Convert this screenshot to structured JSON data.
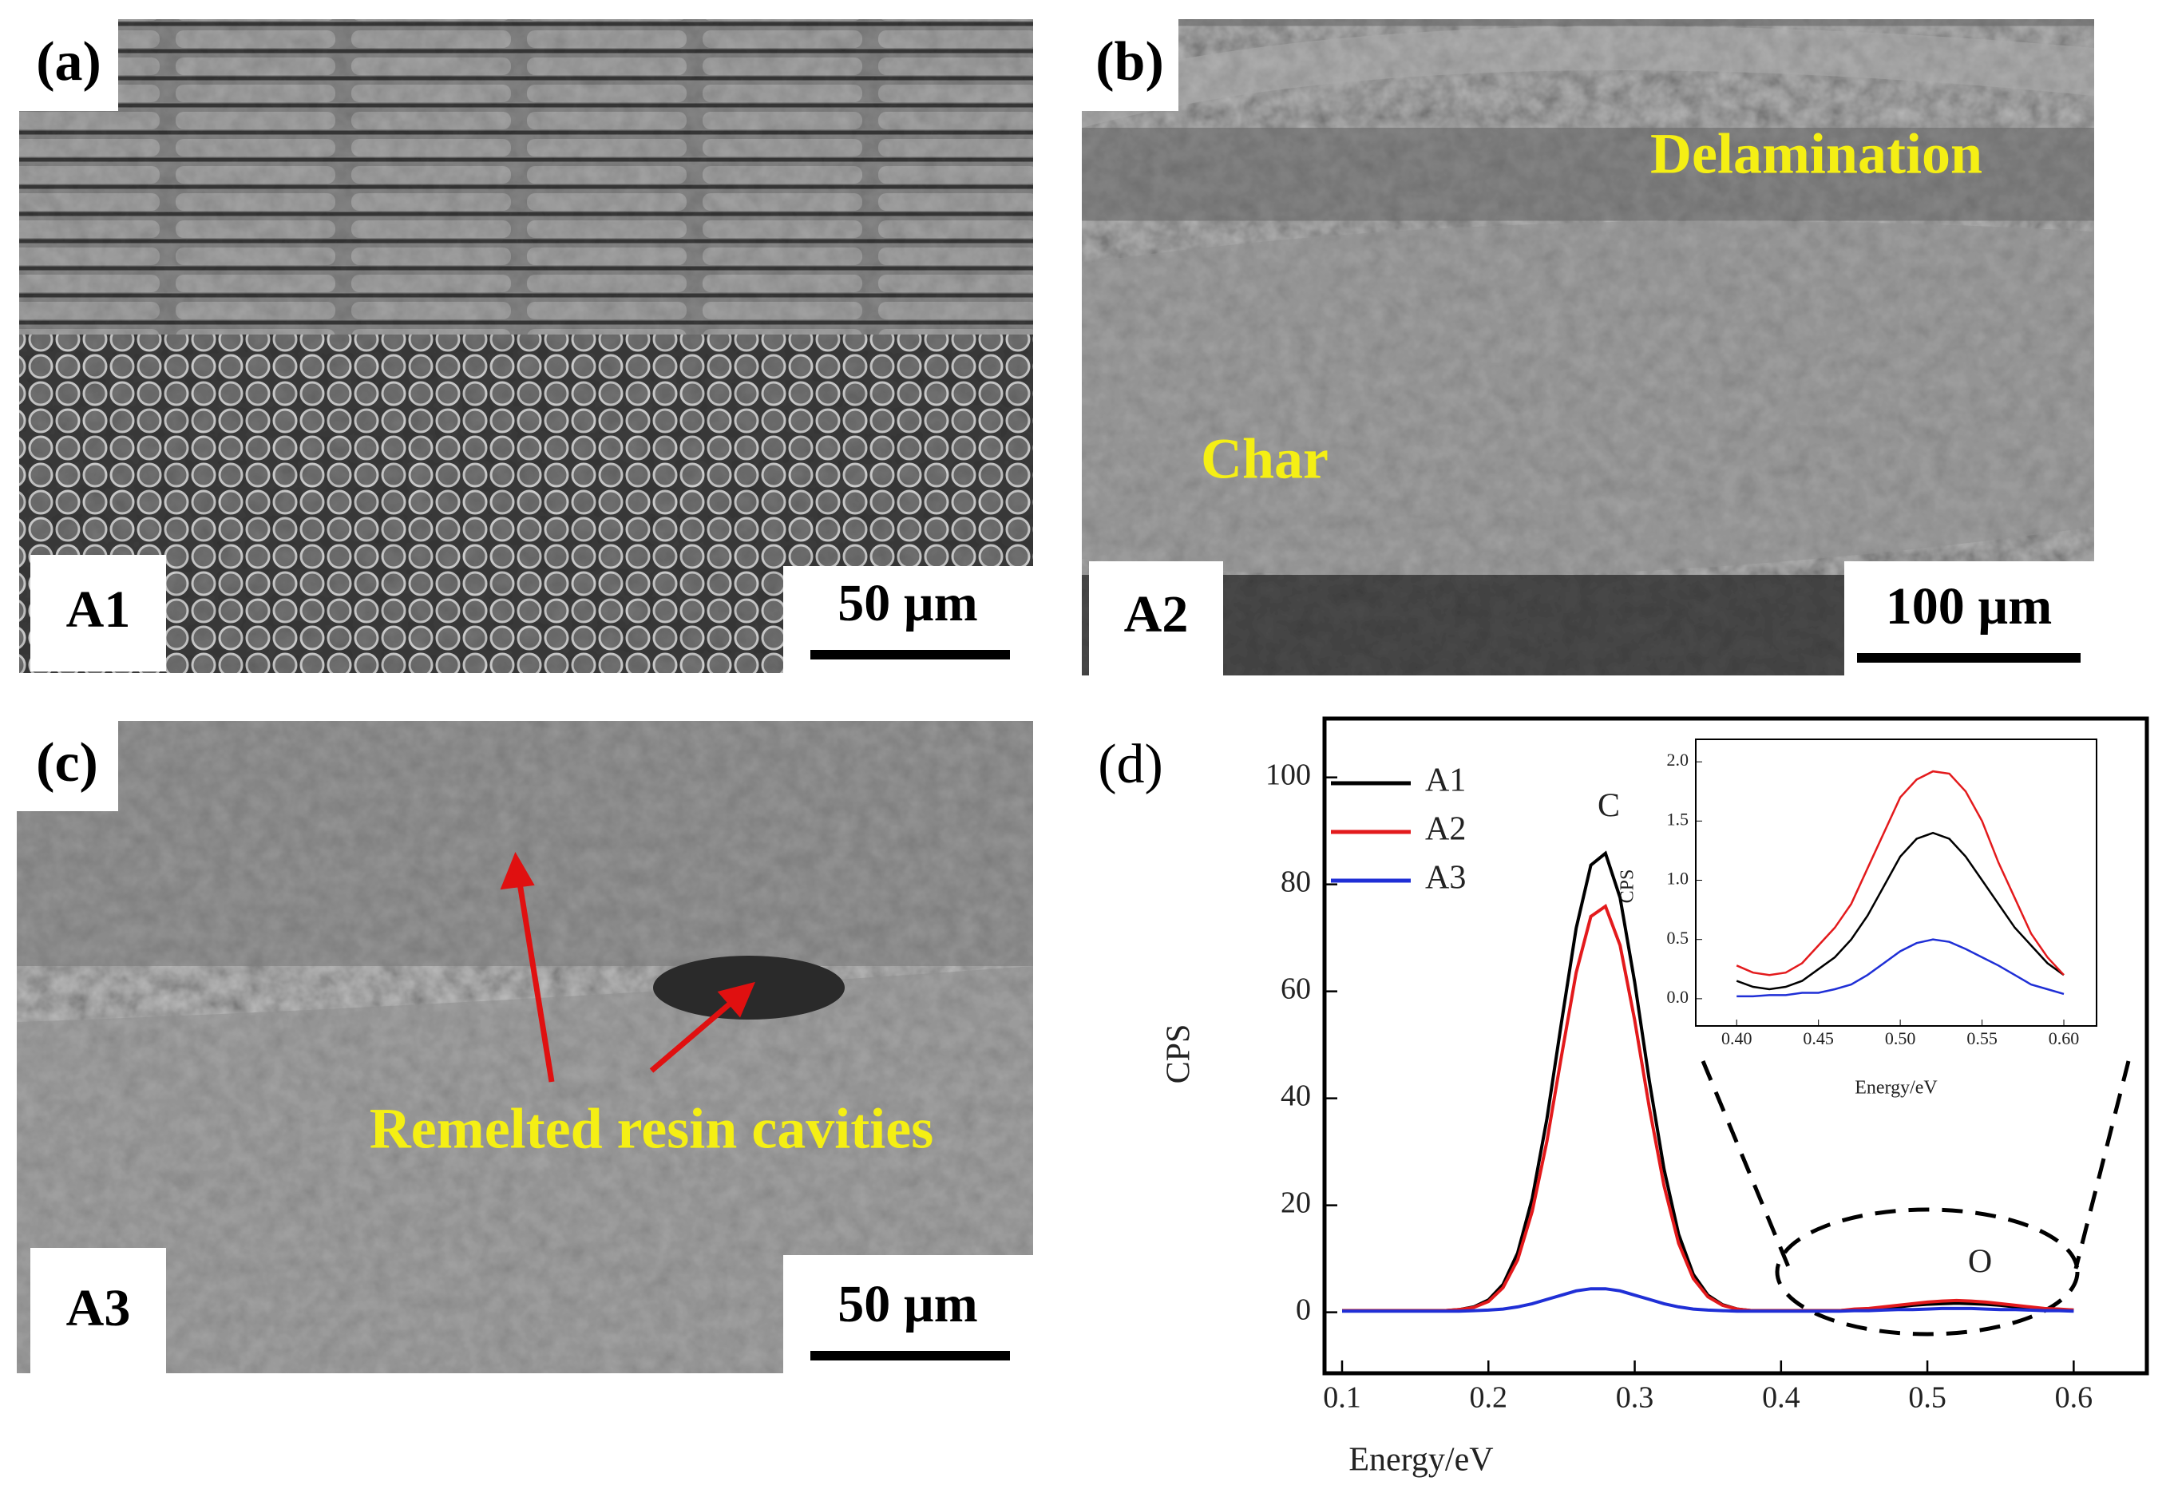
{
  "panels": [
    {
      "label": "(a)",
      "sample": "A1",
      "scale_bar": "50 µm"
    },
    {
      "label": "(b)",
      "sample": "A2",
      "scale_bar": "100 µm",
      "annotations": [
        "Delamination",
        "Char"
      ]
    },
    {
      "label": "(c)",
      "sample": "A3",
      "scale_bar": "50 µm",
      "annotations": [
        "Remelted resin cavities"
      ]
    }
  ],
  "chart_data": [
    {
      "type": "line",
      "panel_label": "(d)",
      "x_label": "Energy/eV",
      "y_label": "CPS",
      "annotations": [
        "C",
        "O"
      ],
      "legend": "upper left",
      "x": [
        0.1,
        0.11,
        0.12,
        0.13,
        0.14,
        0.15,
        0.16,
        0.17,
        0.18,
        0.19,
        0.2,
        0.21,
        0.22,
        0.23,
        0.24,
        0.25,
        0.26,
        0.27,
        0.28,
        0.29,
        0.3,
        0.31,
        0.32,
        0.33,
        0.34,
        0.35,
        0.36,
        0.37,
        0.38,
        0.39,
        0.4,
        0.41,
        0.42,
        0.43,
        0.44,
        0.45,
        0.46,
        0.47,
        0.48,
        0.49,
        0.5,
        0.51,
        0.52,
        0.53,
        0.54,
        0.55,
        0.56,
        0.57,
        0.58,
        0.59,
        0.6
      ],
      "series": [
        {
          "name": "A1",
          "color": "#000000",
          "values": [
            0.3,
            0.3,
            0.3,
            0.3,
            0.3,
            0.3,
            0.3,
            0.3,
            0.5,
            1.0,
            2.3,
            5.2,
            11.1,
            21.3,
            36.2,
            54.3,
            71.8,
            83.6,
            85.8,
            77.5,
            61.7,
            43.2,
            26.8,
            14.6,
            7.1,
            3.2,
            1.4,
            0.6,
            0.3,
            0.3,
            0.3,
            0.3,
            0.3,
            0.3,
            0.3,
            0.5,
            0.6,
            0.8,
            1.0,
            1.3,
            1.5,
            1.6,
            1.7,
            1.6,
            1.5,
            1.3,
            1.0,
            0.8,
            0.6,
            0.5,
            0.4
          ]
        },
        {
          "name": "A2",
          "color": "#e31a1c",
          "values": [
            0.3,
            0.3,
            0.3,
            0.3,
            0.3,
            0.3,
            0.3,
            0.3,
            0.5,
            0.9,
            2.0,
            4.6,
            9.8,
            18.9,
            32.0,
            48.0,
            63.5,
            74.0,
            75.9,
            68.6,
            54.6,
            38.2,
            23.7,
            12.9,
            6.3,
            2.9,
            1.3,
            0.6,
            0.3,
            0.3,
            0.3,
            0.3,
            0.3,
            0.3,
            0.3,
            0.6,
            0.7,
            1.0,
            1.3,
            1.6,
            1.9,
            2.1,
            2.2,
            2.1,
            1.9,
            1.6,
            1.3,
            1.0,
            0.7,
            0.6,
            0.4
          ]
        },
        {
          "name": "A3",
          "color": "#1f2fd6",
          "values": [
            0.2,
            0.2,
            0.2,
            0.2,
            0.2,
            0.2,
            0.2,
            0.2,
            0.2,
            0.3,
            0.4,
            0.6,
            1.0,
            1.6,
            2.4,
            3.2,
            4.0,
            4.4,
            4.4,
            4.0,
            3.2,
            2.4,
            1.6,
            1.0,
            0.6,
            0.4,
            0.3,
            0.2,
            0.2,
            0.2,
            0.2,
            0.2,
            0.2,
            0.2,
            0.2,
            0.3,
            0.3,
            0.4,
            0.5,
            0.5,
            0.6,
            0.7,
            0.7,
            0.7,
            0.6,
            0.5,
            0.5,
            0.4,
            0.3,
            0.3,
            0.2
          ]
        }
      ],
      "xlim": [
        0.088,
        0.65
      ],
      "ylim": [
        -11.4,
        111
      ],
      "xticks": [
        0.1,
        0.2,
        0.3,
        0.4,
        0.5,
        0.6
      ],
      "yticks": [
        0,
        20,
        40,
        60,
        80,
        100
      ]
    },
    {
      "type": "line",
      "x_label": "Energy/eV",
      "y_label": "CPS",
      "x": [
        0.4,
        0.41,
        0.42,
        0.43,
        0.44,
        0.45,
        0.46,
        0.47,
        0.48,
        0.49,
        0.5,
        0.51,
        0.52,
        0.53,
        0.54,
        0.55,
        0.56,
        0.57,
        0.58,
        0.59,
        0.6
      ],
      "series": [
        {
          "color": "#000000",
          "values": [
            0.15,
            0.1,
            0.08,
            0.1,
            0.15,
            0.25,
            0.35,
            0.5,
            0.7,
            0.95,
            1.2,
            1.35,
            1.4,
            1.35,
            1.2,
            1.0,
            0.8,
            0.6,
            0.45,
            0.3,
            0.2
          ]
        },
        {
          "color": "#e31a1c",
          "values": [
            0.28,
            0.22,
            0.2,
            0.22,
            0.3,
            0.45,
            0.6,
            0.8,
            1.1,
            1.4,
            1.7,
            1.85,
            1.92,
            1.9,
            1.75,
            1.5,
            1.15,
            0.85,
            0.55,
            0.35,
            0.2
          ]
        },
        {
          "color": "#1f2fd6",
          "values": [
            0.02,
            0.02,
            0.03,
            0.03,
            0.05,
            0.05,
            0.08,
            0.12,
            0.2,
            0.3,
            0.4,
            0.47,
            0.5,
            0.48,
            0.42,
            0.35,
            0.28,
            0.2,
            0.12,
            0.08,
            0.04
          ]
        }
      ],
      "xlim": [
        0.375,
        0.62
      ],
      "ylim": [
        -0.23,
        2.19
      ],
      "xticks": [
        {
          "value": 0.4,
          "label": "0.40"
        },
        0.45,
        {
          "value": 0.5,
          "label": "0.50"
        },
        0.55,
        {
          "value": 0.6,
          "label": "0.60"
        }
      ],
      "yticks": [
        {
          "value": 0,
          "label": "0.0"
        },
        0.5,
        {
          "value": 1,
          "label": "1.0"
        },
        1.5,
        {
          "value": 2,
          "label": "2.0"
        }
      ]
    }
  ]
}
